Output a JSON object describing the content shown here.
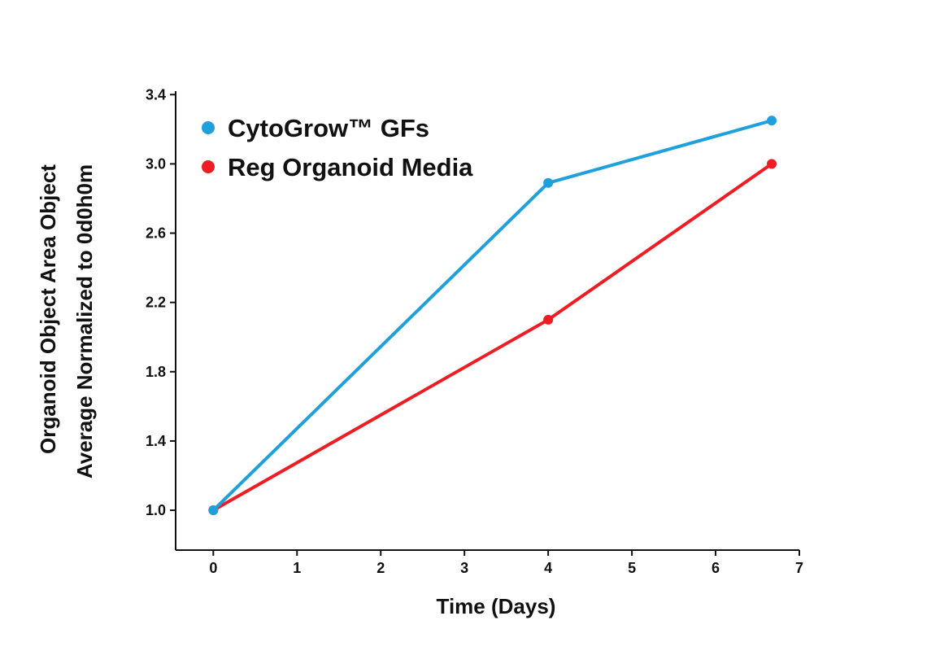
{
  "chart_data": {
    "type": "line",
    "xlabel": "Time (Days)",
    "ylabel_lines": [
      "Organoid Object Area Object",
      "Average Normalized to 0d0h0m"
    ],
    "xlim": [
      -0.45,
      7
    ],
    "ylim": [
      0.77,
      3.42
    ],
    "x_ticks": [
      0,
      1,
      2,
      3,
      4,
      5,
      6,
      7
    ],
    "y_ticks": [
      1.0,
      1.4,
      1.8,
      2.2,
      2.6,
      3.0,
      3.4
    ],
    "y_tick_labels": [
      "1.0",
      "1.4",
      "1.8",
      "2.2",
      "2.6",
      "3.0",
      "3.4"
    ],
    "grid": false,
    "legend_position": "top-left",
    "series": [
      {
        "name": "CytoGrow™ GFs",
        "color": "#1ea0dc",
        "x": [
          0,
          4,
          6.67
        ],
        "y": [
          1.0,
          2.89,
          3.25
        ]
      },
      {
        "name": "Reg Organoid Media",
        "color": "#ef1c24",
        "x": [
          0,
          4,
          6.67
        ],
        "y": [
          1.0,
          2.1,
          3.0
        ]
      }
    ]
  }
}
